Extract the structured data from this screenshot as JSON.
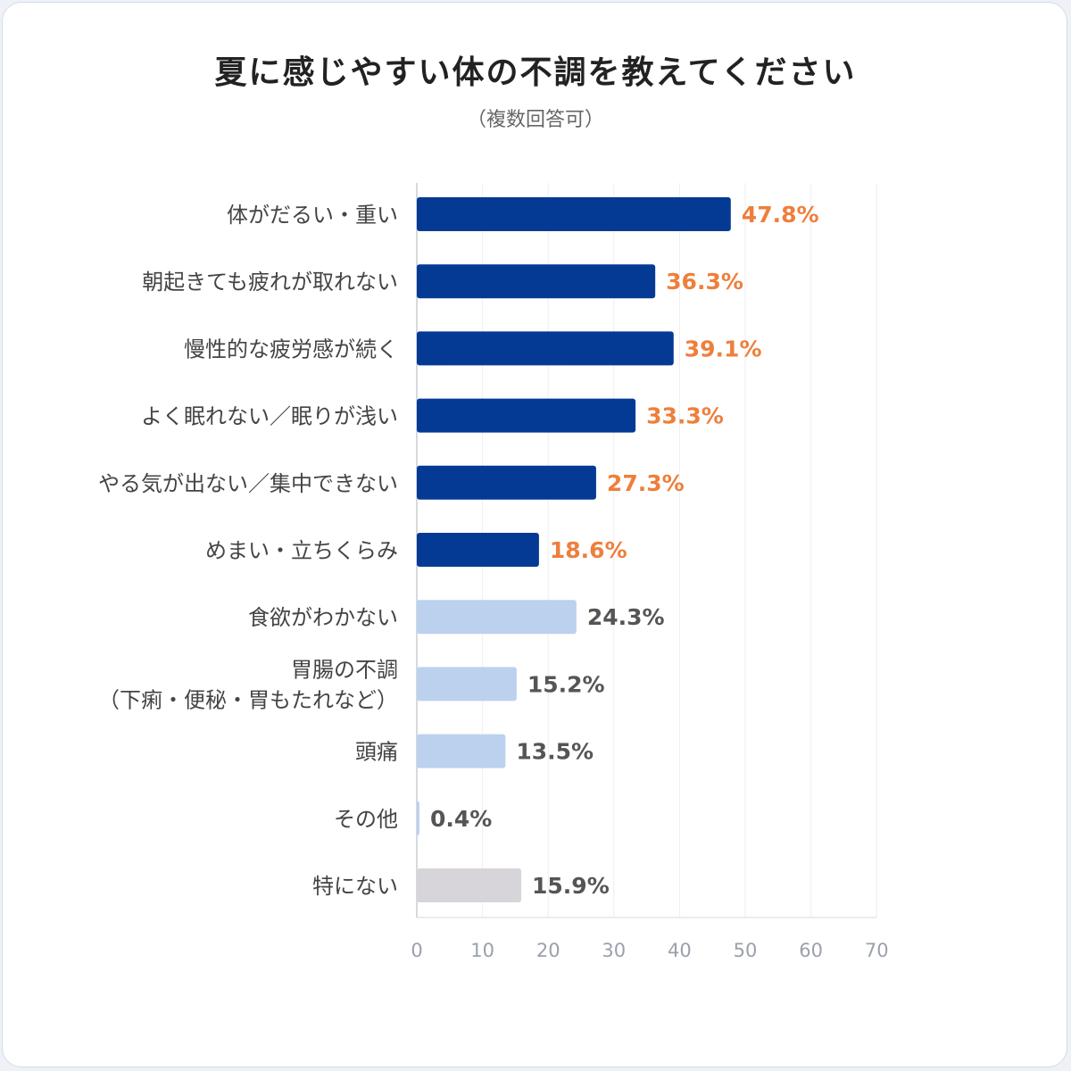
{
  "chart_data": {
    "type": "bar",
    "orientation": "horizontal",
    "title": "夏に感じやすい体の不調を教えてください",
    "subtitle": "（複数回答可）",
    "categories": [
      [
        "体がだるい・重い"
      ],
      [
        "朝起きても疲れが取れない"
      ],
      [
        "慢性的な疲労感が続く"
      ],
      [
        "よく眠れない／眠りが浅い"
      ],
      [
        "やる気が出ない／集中できない"
      ],
      [
        "めまい・立ちくらみ"
      ],
      [
        "食欲がわかない"
      ],
      [
        "胃腸の不調",
        "（下痢・便秘・胃もたれなど）"
      ],
      [
        "頭痛"
      ],
      [
        "その他"
      ],
      [
        "特にない"
      ]
    ],
    "values": [
      47.8,
      36.3,
      39.1,
      33.3,
      27.3,
      18.6,
      24.3,
      15.2,
      13.5,
      0.4,
      15.9
    ],
    "value_labels": [
      "47.8%",
      "36.3%",
      "39.1%",
      "33.3%",
      "27.3%",
      "18.6%",
      "24.3%",
      "15.2%",
      "13.5%",
      "0.4%",
      "15.9%"
    ],
    "bar_colors": [
      "#053a94",
      "#053a94",
      "#053a94",
      "#053a94",
      "#053a94",
      "#053a94",
      "#bcd1ee",
      "#bcd1ee",
      "#bcd1ee",
      "#bcd1ee",
      "#d7d5d9"
    ],
    "label_colors": [
      "#ee7f3b",
      "#ee7f3b",
      "#ee7f3b",
      "#ee7f3b",
      "#ee7f3b",
      "#ee7f3b",
      "#555555",
      "#555555",
      "#555555",
      "#555555",
      "#555555"
    ],
    "xlim": [
      0,
      70
    ],
    "xticks": [
      0,
      10,
      20,
      30,
      40,
      50,
      60,
      70
    ],
    "grid": true,
    "legend": "none"
  }
}
